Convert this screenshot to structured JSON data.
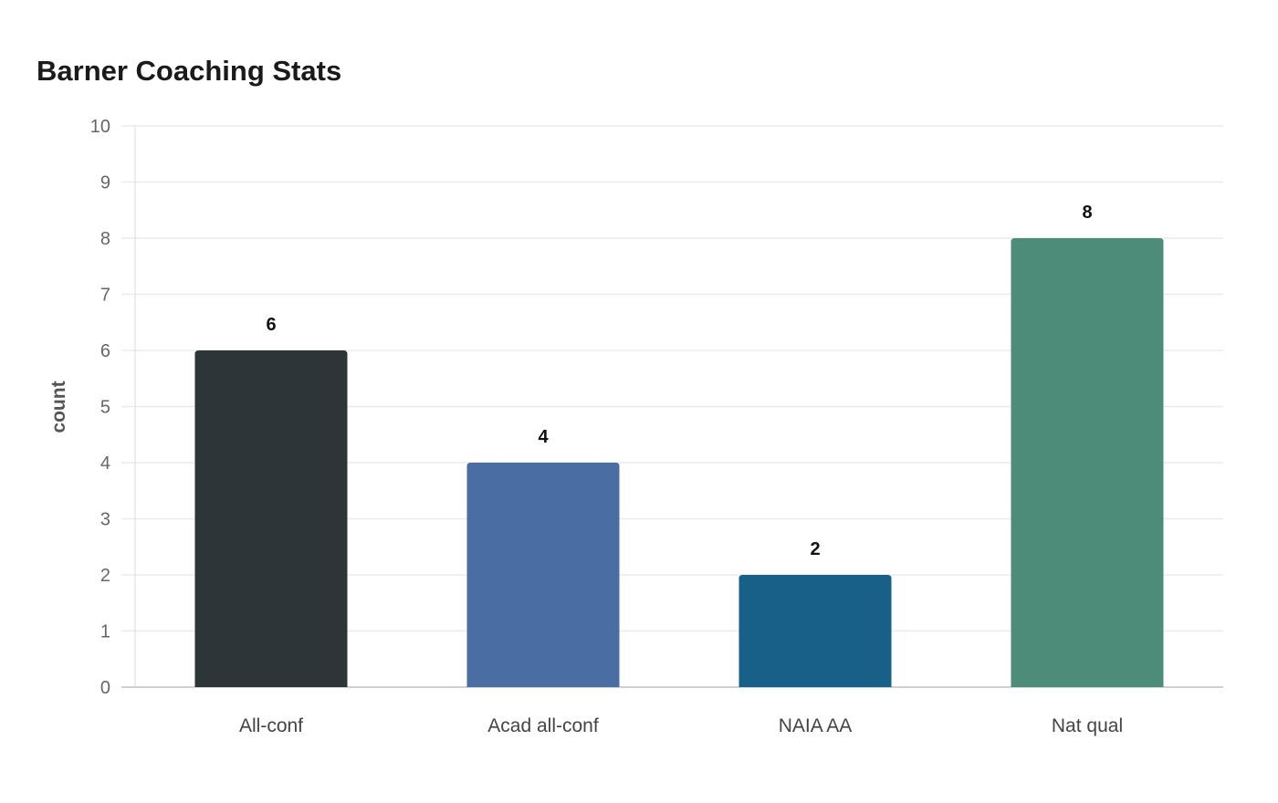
{
  "chart_data": {
    "type": "bar",
    "title": "Barner Coaching Stats",
    "xlabel": "",
    "ylabel": "count",
    "categories": [
      "All-conf",
      "Acad all-conf",
      "NAIA AA",
      "Nat qual"
    ],
    "values": [
      6,
      4,
      2,
      8
    ],
    "colors": [
      "#2d3538",
      "#4a6ea3",
      "#186087",
      "#4e8c7a"
    ],
    "ylim": [
      0,
      10
    ],
    "yticks": [
      0,
      1,
      2,
      3,
      4,
      5,
      6,
      7,
      8,
      9,
      10
    ],
    "grid": true,
    "data_labels": true
  }
}
